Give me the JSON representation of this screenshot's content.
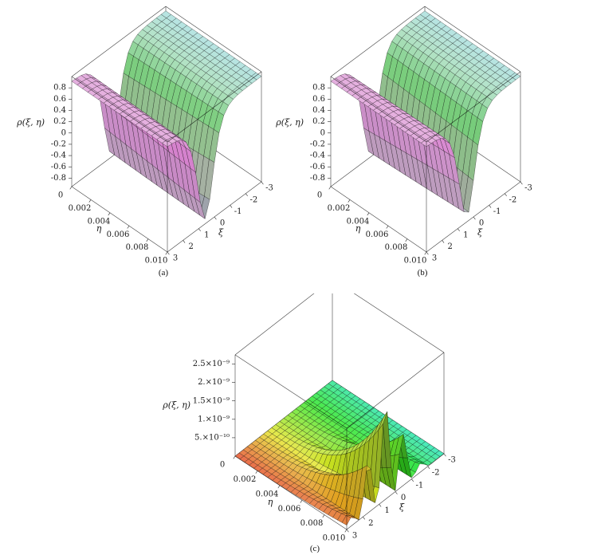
{
  "figure": {
    "background": "#ffffff"
  },
  "chart_data": [
    {
      "id": "a",
      "caption": "(a)",
      "type": "surface3d",
      "axis_labels": {
        "z": "ρ(ξ, η)",
        "x": "ξ",
        "y": "η"
      },
      "xi_range": [
        3,
        -3
      ],
      "eta_range": [
        0,
        0.01
      ],
      "z_range": [
        -0.95,
        1.0
      ],
      "xi_ticks": {
        "values": [
          3,
          2,
          1,
          0,
          -1,
          -2,
          -3
        ],
        "labels": [
          "3",
          "2",
          "1",
          "0",
          "-1",
          "-2",
          "-3"
        ]
      },
      "eta_ticks": {
        "values": [
          0,
          0.002,
          0.004,
          0.006,
          0.008,
          0.01
        ],
        "labels": [
          "0",
          "0.002",
          "0.004",
          "0.006",
          "0.008",
          "0.010"
        ]
      },
      "z_ticks": {
        "values": [
          0.8,
          0.6,
          0.4,
          0.2,
          0,
          -0.2,
          -0.4,
          -0.6,
          -0.8
        ],
        "labels": [
          "0.8",
          "0.6",
          "0.4",
          "0.2",
          "0",
          "-0.2",
          "-0.4",
          "-0.6",
          "-0.8"
        ]
      },
      "surface": {
        "kind": "dark_soliton",
        "description": "dark-soliton density: rho = 0.92 - 1.78*sech^2(1.5*(xi-0.5-8*eta))",
        "plateau": 0.92,
        "depth": 1.78,
        "k": 1.5,
        "x0": 0.5,
        "drift": 8,
        "grid_xi": 20,
        "grid_eta": 18
      },
      "palette": "soliton",
      "features": {
        "plateau_height": 0.92,
        "minimum": -0.86
      }
    },
    {
      "id": "b",
      "caption": "(b)",
      "type": "surface3d",
      "axis_labels": {
        "z": "ρ(ξ, η)",
        "x": "ξ",
        "y": "η"
      },
      "xi_range": [
        3,
        -3
      ],
      "eta_range": [
        0,
        0.01
      ],
      "z_range": [
        -0.95,
        1.0
      ],
      "xi_ticks": {
        "values": [
          3,
          2,
          1,
          0,
          -1,
          -2,
          -3
        ],
        "labels": [
          "3",
          "2",
          "1",
          "0",
          "-1",
          "-2",
          "-3"
        ]
      },
      "eta_ticks": {
        "values": [
          0,
          0.002,
          0.004,
          0.006,
          0.008,
          0.01
        ],
        "labels": [
          "0",
          "0.002",
          "0.004",
          "0.006",
          "0.008",
          "0.010"
        ]
      },
      "z_ticks": {
        "values": [
          0.8,
          0.6,
          0.4,
          0.2,
          0,
          -0.2,
          -0.4,
          -0.6,
          -0.8
        ],
        "labels": [
          "0.8",
          "0.6",
          "0.4",
          "0.2",
          "0",
          "-0.2",
          "-0.4",
          "-0.6",
          "-0.8"
        ]
      },
      "surface": {
        "kind": "dark_soliton",
        "description": "dark-soliton density: rho = 0.92 - 1.78*sech^2(1.5*(xi-0.5+8*eta))",
        "plateau": 0.92,
        "depth": 1.78,
        "k": 1.5,
        "x0": 0.5,
        "drift": -8,
        "grid_xi": 20,
        "grid_eta": 18
      },
      "palette": "soliton",
      "features": {
        "plateau_height": 0.92,
        "minimum": -0.86
      }
    },
    {
      "id": "c",
      "caption": "(c)",
      "type": "surface3d",
      "axis_labels": {
        "z": "ρ(ξ, η)",
        "x": "ξ",
        "y": "η"
      },
      "xi_range": [
        3,
        -3
      ],
      "eta_range": [
        0,
        0.01
      ],
      "z_range": [
        0,
        2.75e-09
      ],
      "xi_ticks": {
        "values": [
          3,
          2,
          1,
          0,
          -1,
          -2,
          -3
        ],
        "labels": [
          "3",
          "2",
          "1",
          "0",
          "-1",
          "-2",
          "-3"
        ]
      },
      "eta_ticks": {
        "values": [
          0,
          0.002,
          0.004,
          0.006,
          0.008,
          0.01
        ],
        "labels": [
          "0",
          "0.002",
          "0.004",
          "0.006",
          "0.008",
          "0.010"
        ]
      },
      "z_ticks": {
        "values": [
          5e-10,
          1e-09,
          1.5e-09,
          2e-09,
          2.5e-09
        ],
        "labels": [
          "5.×10⁻¹⁰",
          "1.×10⁻⁹",
          "1.5×10⁻⁹",
          "2.×10⁻⁹",
          "2.5×10⁻⁹"
        ]
      },
      "surface": {
        "kind": "bright_comb",
        "description": "localized oscillatory peaks: rho ≈ 2.55e-9*(eta/0.01)^3*exp(-0.5*(xi-0.6)^2)*cos^2(2.8*(xi-0.6))",
        "amp": 2.55e-09,
        "pow": 3,
        "x0": 0.6,
        "a": 0.5,
        "w": 2.8,
        "grid_xi": 24,
        "grid_eta": 24
      },
      "palette": "rainbow",
      "features": {
        "peak_height": 2.55e-09
      }
    }
  ]
}
